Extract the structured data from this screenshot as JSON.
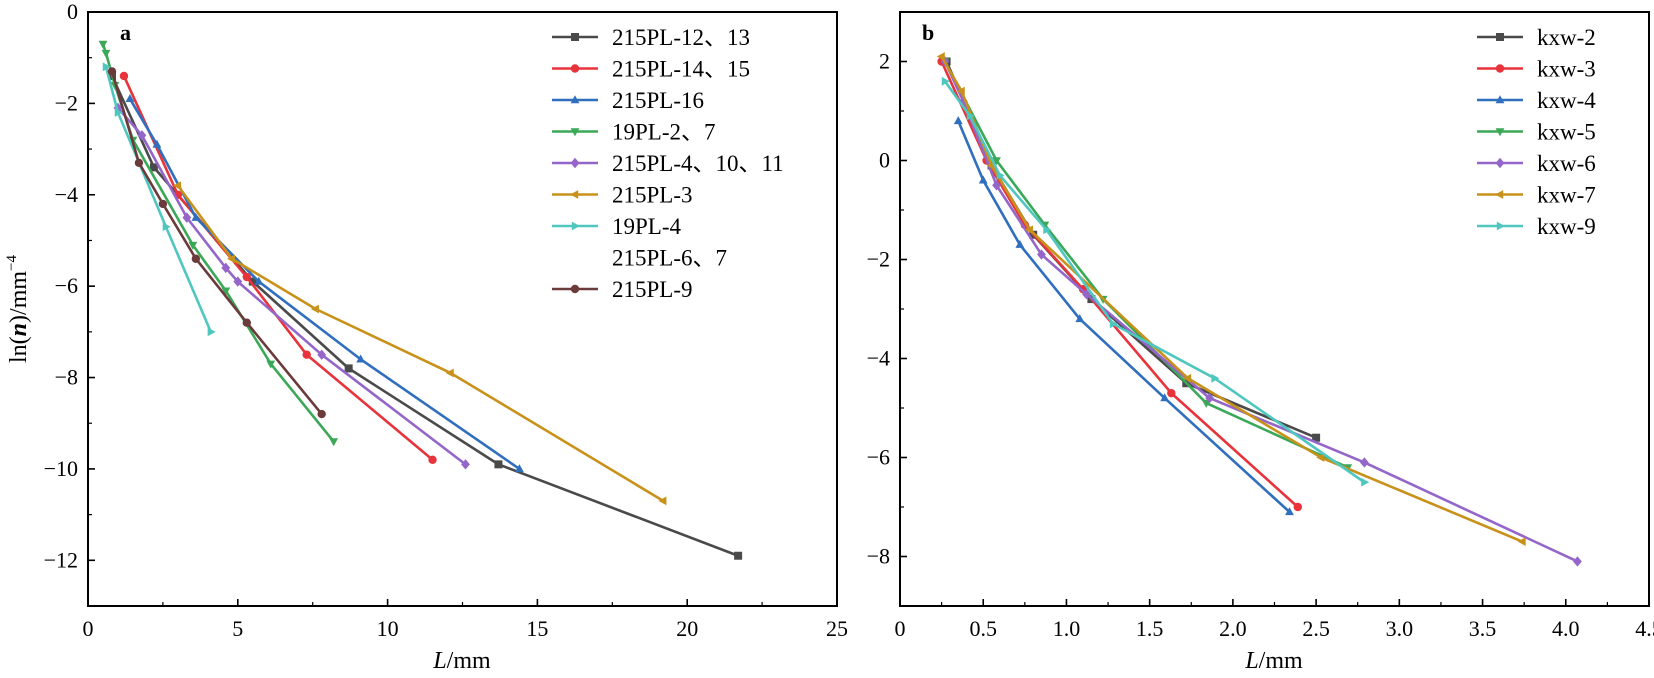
{
  "chart_data": [
    {
      "type": "line",
      "panel_label": "a",
      "xlabel_parts": {
        "var": "L",
        "unit": "/mm"
      },
      "ylabel_parts": {
        "pre": "ln(",
        "var": "n",
        "post": ")/mm",
        "sup": "−4"
      },
      "xlim": [
        0,
        25
      ],
      "ylim": [
        -13,
        0
      ],
      "x_ticks": [
        0,
        5,
        10,
        15,
        20,
        25
      ],
      "y_ticks": [
        0,
        -2,
        -4,
        -6,
        -8,
        -10,
        -12
      ],
      "x_tick_labels": [
        "0",
        "5",
        "10",
        "15",
        "20",
        "25"
      ],
      "y_tick_labels": [
        "0",
        "−2",
        "−4",
        "−6",
        "−8",
        "−10",
        "−12"
      ],
      "grid": false,
      "legend_position": "top-right",
      "series": [
        {
          "name": "215PL-12、13",
          "color": "#4a4a4a",
          "marker": "square",
          "x": [
            0.8,
            2.2,
            5.5,
            8.7,
            13.7,
            21.7
          ],
          "y": [
            -1.4,
            -3.4,
            -5.9,
            -7.8,
            -9.9,
            -11.9
          ]
        },
        {
          "name": "215PL-14、15",
          "color": "#e8333b",
          "marker": "circle",
          "x": [
            1.2,
            3.0,
            5.3,
            7.3,
            11.5
          ],
          "y": [
            -1.4,
            -4.0,
            -5.8,
            -7.5,
            -9.8
          ]
        },
        {
          "name": "215PL-16",
          "color": "#2f6fbe",
          "marker": "triangle-up",
          "x": [
            1.4,
            2.3,
            3.6,
            5.7,
            9.1,
            14.4
          ],
          "y": [
            -1.9,
            -2.9,
            -4.5,
            -5.9,
            -7.6,
            -10.0
          ]
        },
        {
          "name": "19PL-2、7",
          "color": "#3aa856",
          "marker": "triangle-down",
          "x": [
            0.5,
            0.6,
            0.9,
            1.5,
            3.5,
            4.6,
            6.1,
            8.2
          ],
          "y": [
            -0.7,
            -0.9,
            -1.6,
            -2.8,
            -5.1,
            -6.1,
            -7.7,
            -9.4
          ]
        },
        {
          "name": "215PL-4、10、11",
          "color": "#9466c9",
          "marker": "diamond",
          "x": [
            1.0,
            1.8,
            3.3,
            4.6,
            5.0,
            7.8,
            12.6
          ],
          "y": [
            -2.1,
            -2.7,
            -4.5,
            -5.6,
            -5.9,
            -7.5,
            -9.9
          ]
        },
        {
          "name": "215PL-3",
          "color": "#c8921a",
          "marker": "triangle-left",
          "x": [
            3.0,
            4.8,
            7.6,
            12.1,
            19.2
          ],
          "y": [
            -3.8,
            -5.4,
            -6.5,
            -7.9,
            -10.7
          ]
        },
        {
          "name": "19PL-4",
          "color": "#4fc7bf",
          "marker": "triangle-right",
          "x": [
            0.6,
            1.0,
            2.6,
            4.1
          ],
          "y": [
            -1.2,
            -2.2,
            -4.7,
            -7.0
          ]
        },
        {
          "name": "215PL-6、7",
          "color": "#ffffff",
          "marker": "none",
          "x": [],
          "y": []
        },
        {
          "name": "215PL-9",
          "color": "#6b3a3a",
          "marker": "circle",
          "x": [
            0.8,
            1.7,
            2.5,
            3.6,
            5.3,
            7.8
          ],
          "y": [
            -1.3,
            -3.3,
            -4.2,
            -5.4,
            -6.8,
            -8.8
          ]
        }
      ]
    },
    {
      "type": "line",
      "panel_label": "b",
      "xlabel_parts": {
        "var": "L",
        "unit": "/mm"
      },
      "xlim": [
        0,
        4.5
      ],
      "ylim": [
        -9,
        3
      ],
      "x_ticks": [
        0,
        0.5,
        1.0,
        1.5,
        2.0,
        2.5,
        3.0,
        3.5,
        4.0,
        4.5
      ],
      "y_ticks": [
        2,
        0,
        -2,
        -4,
        -6,
        -8
      ],
      "x_tick_labels": [
        "0",
        "0.5",
        "1.0",
        "1.5",
        "2.0",
        "2.5",
        "3.0",
        "3.5",
        "4.0",
        "4.5"
      ],
      "y_tick_labels": [
        "2",
        "0",
        "−2",
        "−4",
        "−6",
        "−8"
      ],
      "grid": false,
      "legend_position": "top-right",
      "series": [
        {
          "name": "kxw-2",
          "color": "#4a4a4a",
          "marker": "square",
          "x": [
            0.28,
            0.55,
            0.8,
            1.15,
            1.72,
            2.5
          ],
          "y": [
            2.0,
            -0.1,
            -1.5,
            -2.8,
            -4.5,
            -5.6
          ]
        },
        {
          "name": "kxw-3",
          "color": "#e8333b",
          "marker": "circle",
          "x": [
            0.25,
            0.52,
            0.75,
            1.1,
            1.63,
            2.39
          ],
          "y": [
            2.0,
            0.0,
            -1.3,
            -2.6,
            -4.7,
            -7.0
          ]
        },
        {
          "name": "kxw-4",
          "color": "#2f6fbe",
          "marker": "triangle-up",
          "x": [
            0.35,
            0.5,
            0.72,
            1.08,
            1.59,
            2.34
          ],
          "y": [
            0.8,
            -0.4,
            -1.7,
            -3.2,
            -4.8,
            -7.1
          ]
        },
        {
          "name": "kxw-5",
          "color": "#3aa856",
          "marker": "triangle-down",
          "x": [
            0.27,
            0.58,
            0.87,
            1.22,
            1.84,
            2.69
          ],
          "y": [
            2.0,
            0.0,
            -1.3,
            -2.8,
            -4.9,
            -6.2
          ]
        },
        {
          "name": "kxw-6",
          "color": "#9466c9",
          "marker": "diamond",
          "x": [
            0.27,
            0.38,
            0.58,
            0.85,
            1.12,
            1.86,
            2.79,
            4.07
          ],
          "y": [
            2.0,
            1.2,
            -0.5,
            -1.9,
            -2.7,
            -4.8,
            -6.1,
            -8.1
          ]
        },
        {
          "name": "kxw-7",
          "color": "#c8921a",
          "marker": "triangle-left",
          "x": [
            0.25,
            0.37,
            0.55,
            0.78,
            1.73,
            2.53,
            3.74
          ],
          "y": [
            2.1,
            1.4,
            -0.1,
            -1.4,
            -4.4,
            -6.0,
            -7.7
          ]
        },
        {
          "name": "kxw-9",
          "color": "#4fc7bf",
          "marker": "triangle-right",
          "x": [
            0.27,
            0.42,
            0.6,
            0.88,
            1.28,
            1.89,
            2.79
          ],
          "y": [
            1.6,
            0.9,
            -0.3,
            -1.4,
            -3.3,
            -4.4,
            -6.5
          ]
        }
      ]
    }
  ]
}
